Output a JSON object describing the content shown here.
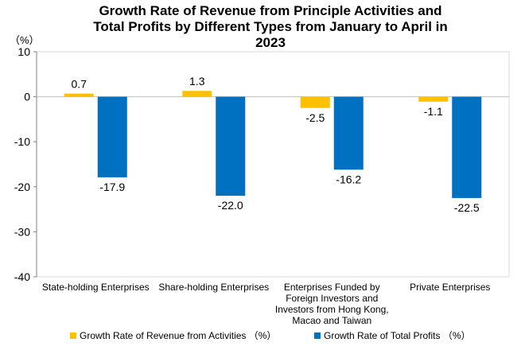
{
  "chart_data": {
    "type": "bar",
    "title": "Growth Rate of Revenue from Principle Activities and\nTotal Profits by Different Types from January to April in\n2023",
    "unit": "（%）",
    "categories": [
      "State-holding Enterprises",
      "Share-holding Enterprises",
      "Enterprises Funded by\nForeign Investors and\nInvestors from Hong Kong,\nMacao and Taiwan",
      "Private Enterprises"
    ],
    "series": [
      {
        "name": "Growth Rate of Revenue from Activities （%）",
        "color": "#FFC000",
        "values": [
          0.7,
          1.3,
          -2.5,
          -1.1
        ],
        "labels": [
          "0.7",
          "1.3",
          "-2.5",
          "-1.1"
        ]
      },
      {
        "name": "Growth Rate of Total Profits （%）",
        "color": "#0070C0",
        "values": [
          -17.9,
          -22.0,
          -16.2,
          -22.5
        ],
        "labels": [
          "-17.9",
          "-22.0",
          "-16.2",
          "-22.5"
        ]
      }
    ],
    "ylim": [
      -40,
      10
    ],
    "yticks": [
      10,
      0,
      -10,
      -20,
      -30,
      -40
    ],
    "grid": false,
    "legend_position": "bottom"
  }
}
